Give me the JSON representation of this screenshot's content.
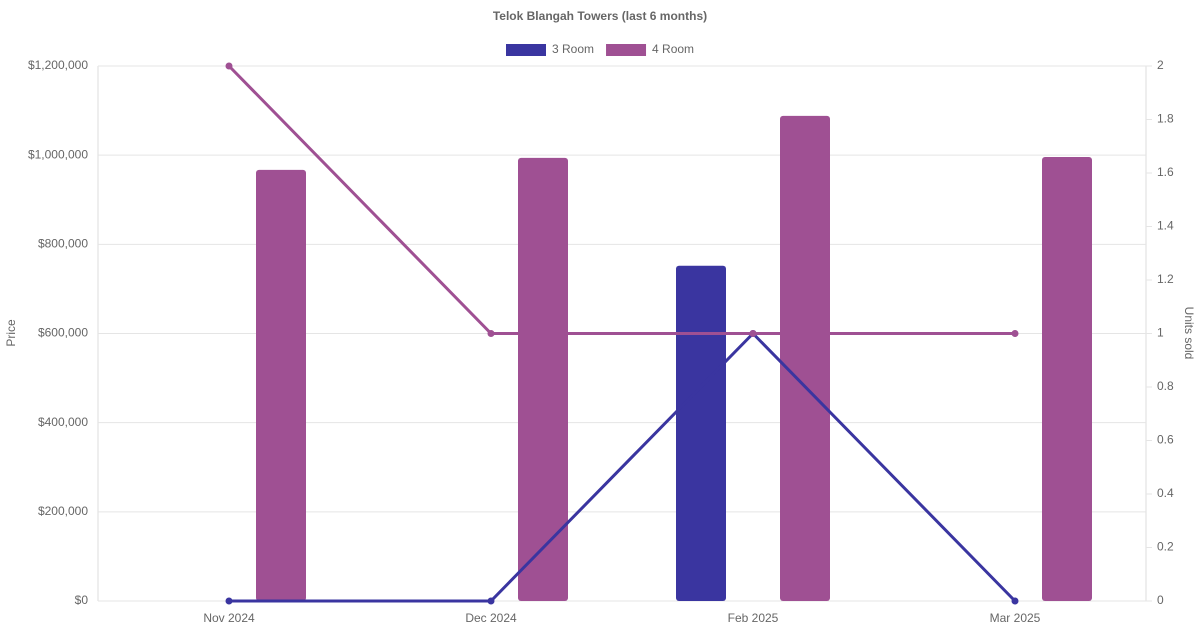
{
  "chart_data": {
    "type": "bar-line",
    "title": "Telok Blangah Towers (last 6 months)",
    "ylabel": "Price",
    "y2label": "Units sold",
    "categories": [
      "Nov 2024",
      "Dec 2024",
      "Feb 2025",
      "Mar 2025"
    ],
    "series": [
      {
        "name": "3 Room",
        "type": "bar",
        "color": "#3a35a0",
        "values": [
          null,
          null,
          752000,
          null
        ]
      },
      {
        "name": "4 Room",
        "type": "bar",
        "color": "#9f5093",
        "values": [
          967000,
          994000,
          1088000,
          996000
        ]
      },
      {
        "name": "3 Room",
        "type": "line",
        "axis": "y2",
        "color": "#3a35a0",
        "values": [
          0,
          0,
          1,
          0
        ]
      },
      {
        "name": "4 Room",
        "type": "line",
        "axis": "y2",
        "color": "#9f5093",
        "values": [
          2,
          1,
          1,
          1
        ]
      }
    ],
    "ylim": [
      0,
      1200000
    ],
    "yticks": [
      {
        "value": 0,
        "label": "$0"
      },
      {
        "value": 200000,
        "label": "$200,000"
      },
      {
        "value": 400000,
        "label": "$400,000"
      },
      {
        "value": 600000,
        "label": "$600,000"
      },
      {
        "value": 800000,
        "label": "$800,000"
      },
      {
        "value": 1000000,
        "label": "$1,000,000"
      },
      {
        "value": 1200000,
        "label": "$1,200,000"
      }
    ],
    "y2lim": [
      0,
      2
    ],
    "y2ticks": [
      0,
      0.2,
      0.4,
      0.6,
      0.8,
      1,
      1.2,
      1.4,
      1.6,
      1.8,
      2
    ],
    "grid": true,
    "legend": "top"
  }
}
